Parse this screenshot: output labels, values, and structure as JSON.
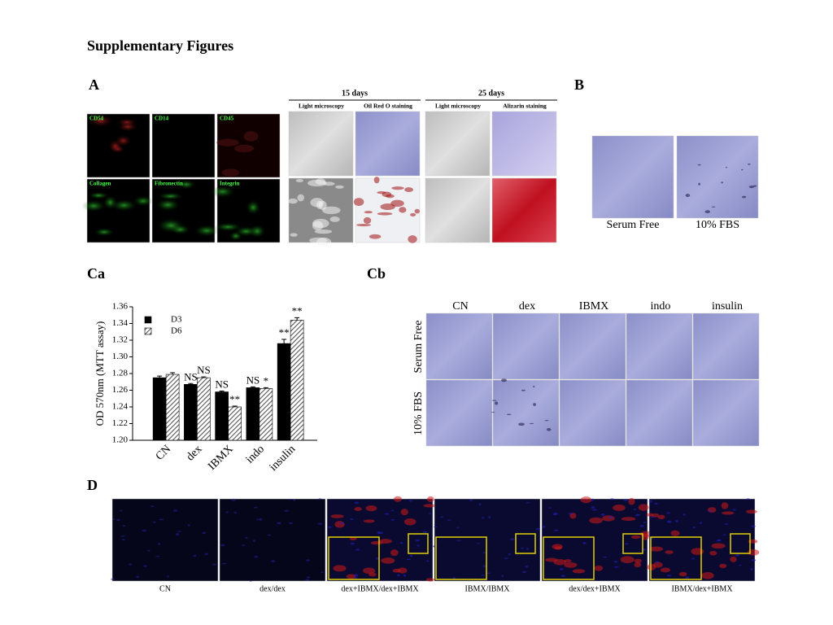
{
  "title": "Supplementary Figures",
  "panel_a": {
    "label": "A",
    "markers": [
      "CD54",
      "CD14",
      "CD45",
      "Collagen",
      "Fibronectin",
      "Integrin"
    ],
    "groups": [
      {
        "title": "15 days",
        "columns": [
          "Light microscopy",
          "Oil Red O staining"
        ]
      },
      {
        "title": "25 days",
        "columns": [
          "Light microscopy",
          "Alizarin staining"
        ]
      }
    ]
  },
  "panel_b": {
    "label": "B",
    "captions": [
      "Serum Free",
      "10% FBS"
    ]
  },
  "panel_ca": {
    "label": "Ca"
  },
  "chart_data": {
    "type": "bar",
    "ylabel": "OD 570nm (MTT assay)",
    "categories": [
      "CN",
      "dex",
      "IBMX",
      "indo",
      "insulin"
    ],
    "series": [
      {
        "name": "D3",
        "color": "#000000",
        "values": [
          1.275,
          1.267,
          1.258,
          1.263,
          1.316
        ],
        "errors": [
          0.002,
          0.001,
          0.001,
          0.001,
          0.005
        ],
        "annotations": [
          null,
          "NS",
          "NS",
          "NS",
          "**"
        ]
      },
      {
        "name": "D6",
        "color": "#555555",
        "pattern": "hatch",
        "values": [
          1.279,
          1.275,
          1.24,
          1.262,
          1.344
        ],
        "errors": [
          0.002,
          0.001,
          0.001,
          0.001,
          0.003
        ],
        "annotations": [
          null,
          "NS",
          "**",
          "*",
          "**"
        ]
      }
    ],
    "ylim": [
      1.2,
      1.36
    ],
    "yticks": [
      {
        "value": 1.2,
        "label": "1.20"
      },
      1.22,
      1.24,
      1.26,
      1.28,
      {
        "value": 1.3,
        "label": "1.30"
      },
      1.32,
      1.34,
      1.36
    ],
    "legend": "upper left"
  },
  "panel_cb": {
    "label": "Cb",
    "columns": [
      "CN",
      "dex",
      "IBMX",
      "indo",
      "insulin"
    ],
    "rows": [
      "Serum Free",
      "10% FBS"
    ]
  },
  "panel_d": {
    "label": "D",
    "captions": [
      "CN",
      "dex/dex",
      "dex+IBMX/dex+IBMX",
      "IBMX/IBMX",
      "dex/dex+IBMX",
      "IBMX/dex+IBMX"
    ]
  }
}
